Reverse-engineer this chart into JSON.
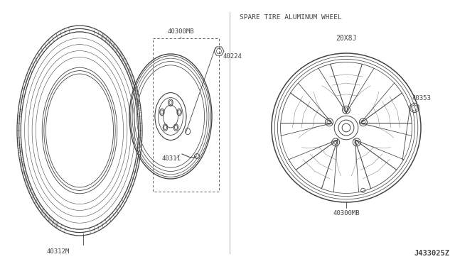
{
  "bg_color": "#ffffff",
  "line_color": "#444444",
  "text_color": "#444444",
  "label_40300MB_box": "40300MB",
  "label_40311": "40311",
  "label_40312M": "40312M",
  "label_40224": "40224",
  "label_40300MB_wheel": "40300MB",
  "label_40353": "40353",
  "label_20X8J": "20X8J",
  "title_spare": "SPARE TIRE ALUMINUM WHEEL",
  "label_diagram_id": "J433025Z",
  "font_size_labels": 6.5,
  "font_size_title": 6.8,
  "font_size_id": 7.5
}
